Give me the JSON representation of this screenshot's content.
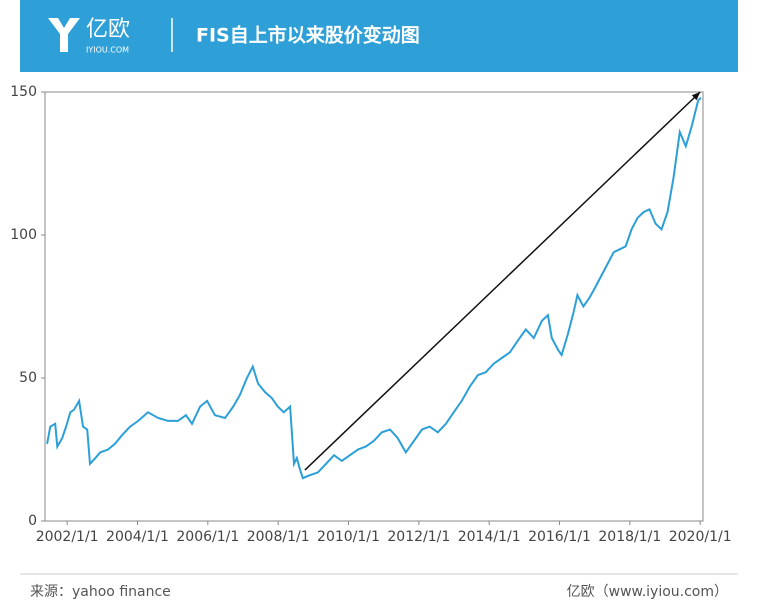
{
  "header": {
    "logo": "亿欧",
    "logo_sub": "IYIOU.COM"
  },
  "chart_data": {
    "type": "line",
    "title": "FIS自上市以来股价变动图",
    "color": "#2b9fd8",
    "x": [
      2001.43,
      2001.52,
      2001.66,
      2001.72,
      2001.86,
      2001.97,
      2002.09,
      2002.2,
      2002.34,
      2002.45,
      2002.57,
      2002.65,
      2002.8,
      2002.94,
      2003.16,
      2003.36,
      2003.56,
      2003.79,
      2004.02,
      2004.3,
      2004.59,
      2004.87,
      2005.15,
      2005.38,
      2005.55,
      2005.78,
      2005.98,
      2006.2,
      2006.49,
      2006.72,
      2006.91,
      2007.11,
      2007.28,
      2007.43,
      2007.63,
      2007.82,
      2007.99,
      2008.16,
      2008.34,
      2008.45,
      2008.53,
      2008.62,
      2008.7,
      2008.9,
      2009.13,
      2009.36,
      2009.59,
      2009.81,
      2010.04,
      2010.27,
      2010.49,
      2010.72,
      2010.95,
      2011.18,
      2011.4,
      2011.63,
      2011.86,
      2012.09,
      2012.31,
      2012.54,
      2012.77,
      2012.99,
      2013.22,
      2013.45,
      2013.68,
      2013.9,
      2014.13,
      2014.36,
      2014.59,
      2014.81,
      2015.04,
      2015.27,
      2015.5,
      2015.67,
      2015.78,
      2015.95,
      2016.06,
      2016.23,
      2016.4,
      2016.51,
      2016.68,
      2016.85,
      2017.03,
      2017.2,
      2017.37,
      2017.54,
      2017.71,
      2017.88,
      2018.05,
      2018.22,
      2018.39,
      2018.56,
      2018.73,
      2018.9,
      2019.07,
      2019.24,
      2019.42,
      2019.59,
      2019.76,
      2019.94,
      2020.02
    ],
    "values": [
      27,
      33,
      34,
      26,
      29,
      33,
      38,
      39,
      42,
      33,
      32,
      20,
      22,
      24,
      25,
      27,
      30,
      33,
      35,
      38,
      36,
      35,
      35,
      37,
      34,
      40,
      42,
      37,
      36,
      40,
      44,
      50,
      54,
      48,
      45,
      43,
      40,
      38,
      40,
      20,
      22,
      18,
      15,
      16,
      17,
      20,
      23,
      21,
      23,
      25,
      26,
      28,
      31,
      32,
      29,
      24,
      28,
      32,
      33,
      31,
      34,
      38,
      42,
      47,
      51,
      52,
      55,
      57,
      59,
      63,
      67,
      64,
      70,
      72,
      64,
      60,
      58,
      65,
      73,
      79,
      75,
      78,
      82,
      86,
      90,
      94,
      95,
      96,
      102,
      106,
      108,
      109,
      104,
      102,
      108,
      120,
      136,
      131,
      138,
      147,
      148
    ],
    "xlim": [
      2001.37,
      2020.08
    ],
    "ylim": [
      0,
      150
    ],
    "yticks": [
      0,
      50,
      100,
      150
    ],
    "xticks": [
      {
        "value": 2002,
        "label": "2002/1/1"
      },
      {
        "value": 2004,
        "label": "2004/1/1"
      },
      {
        "value": 2006,
        "label": "2006/1/1"
      },
      {
        "value": 2008,
        "label": "2008/1/1"
      },
      {
        "value": 2010,
        "label": "2010/1/1"
      },
      {
        "value": 2012,
        "label": "2012/1/1"
      },
      {
        "value": 2014,
        "label": "2014/1/1"
      },
      {
        "value": 2016,
        "label": "2016/1/1"
      },
      {
        "value": 2018,
        "label": "2018/1/1"
      },
      {
        "value": 2020,
        "label": "2020/1/1"
      }
    ],
    "arrow": {
      "x": [
        2008.76,
        2020.0
      ],
      "y": [
        17.8,
        150
      ]
    }
  },
  "footer": {
    "source": "来源：yahoo finance",
    "brand": "亿欧（www.iyiou.com）"
  }
}
